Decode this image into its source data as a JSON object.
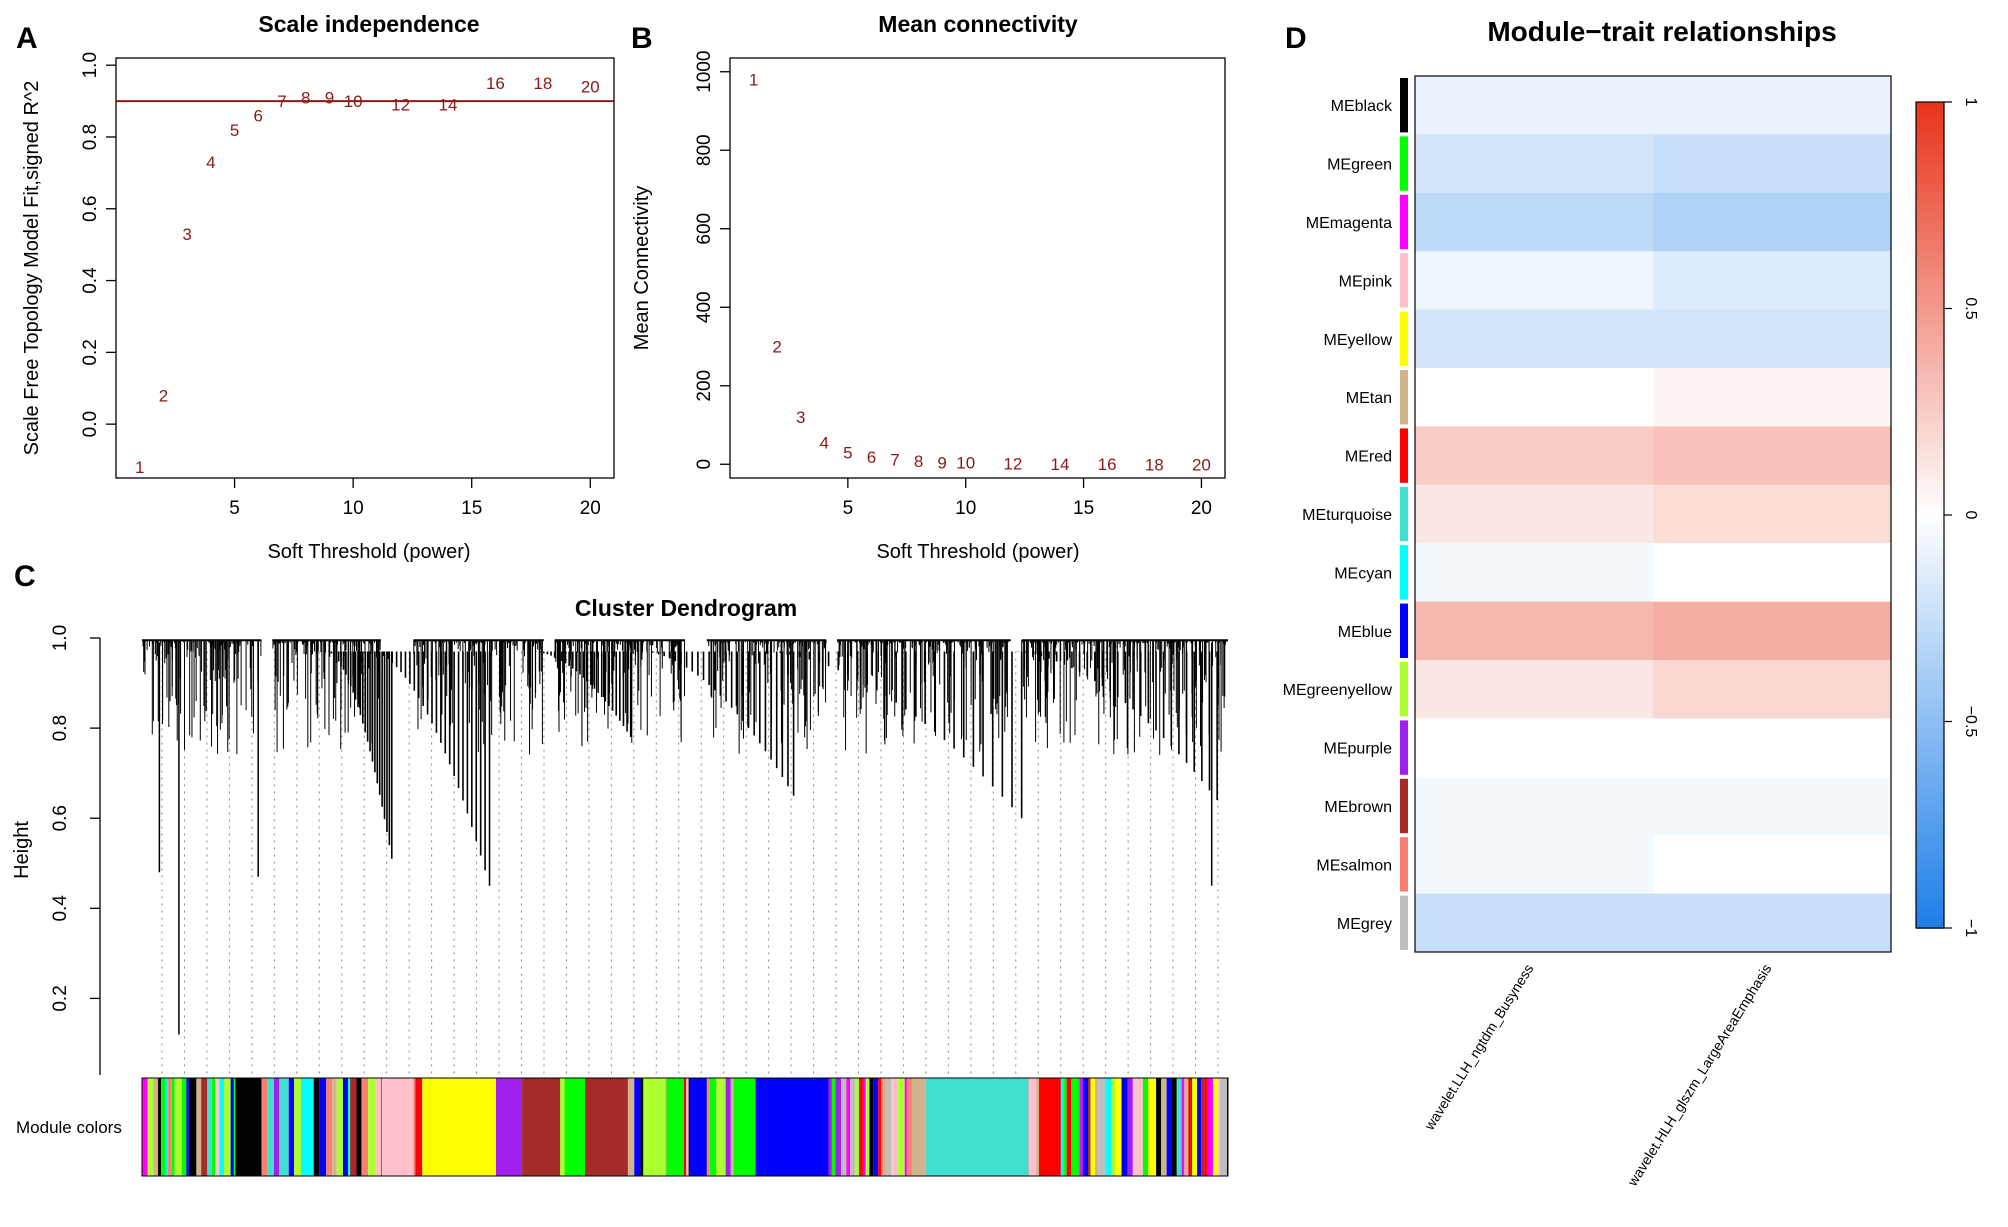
{
  "panels": {
    "a": {
      "letter": "A"
    },
    "b": {
      "letter": "B"
    },
    "c": {
      "letter": "C"
    },
    "d": {
      "letter": "D"
    }
  },
  "chart_data": [
    {
      "id": "scale-independence",
      "type": "scatter",
      "title": "Scale independence",
      "xlabel": "Soft Threshold (power)",
      "ylabel": "Scale Free Topology Model Fit,signed R^2",
      "xlim": [
        0,
        21
      ],
      "ylim": [
        -0.15,
        1.02
      ],
      "xticks": [
        5,
        10,
        15,
        20
      ],
      "yticks": [
        0.0,
        0.2,
        0.4,
        0.6,
        0.8,
        1.0
      ],
      "xtick_labels": [
        "5",
        "10",
        "15",
        "20"
      ],
      "ytick_labels": [
        "0.0",
        "0.2",
        "0.4",
        "0.6",
        "0.8",
        "1.0"
      ],
      "hline": 0.9,
      "points": [
        {
          "label": "1",
          "x": 1,
          "y": -0.12
        },
        {
          "label": "2",
          "x": 2,
          "y": 0.08
        },
        {
          "label": "3",
          "x": 3,
          "y": 0.53
        },
        {
          "label": "4",
          "x": 4,
          "y": 0.73
        },
        {
          "label": "5",
          "x": 5,
          "y": 0.82
        },
        {
          "label": "6",
          "x": 6,
          "y": 0.86
        },
        {
          "label": "7",
          "x": 7,
          "y": 0.9
        },
        {
          "label": "8",
          "x": 8,
          "y": 0.91
        },
        {
          "label": "9",
          "x": 9,
          "y": 0.91
        },
        {
          "label": "10",
          "x": 10,
          "y": 0.9
        },
        {
          "label": "12",
          "x": 12,
          "y": 0.89
        },
        {
          "label": "14",
          "x": 14,
          "y": 0.89
        },
        {
          "label": "16",
          "x": 16,
          "y": 0.95
        },
        {
          "label": "18",
          "x": 18,
          "y": 0.95
        },
        {
          "label": "20",
          "x": 20,
          "y": 0.94
        }
      ]
    },
    {
      "id": "mean-connectivity",
      "type": "scatter",
      "title": "Mean connectivity",
      "xlabel": "Soft Threshold (power)",
      "ylabel": "Mean Connectivity",
      "xlim": [
        0,
        21
      ],
      "ylim": [
        -35,
        1035
      ],
      "xticks": [
        5,
        10,
        15,
        20
      ],
      "yticks": [
        0,
        200,
        400,
        600,
        800,
        1000
      ],
      "xtick_labels": [
        "5",
        "10",
        "15",
        "20"
      ],
      "ytick_labels": [
        "0",
        "200",
        "400",
        "600",
        "800",
        "1000"
      ],
      "points": [
        {
          "label": "1",
          "x": 1,
          "y": 980
        },
        {
          "label": "2",
          "x": 2,
          "y": 300
        },
        {
          "label": "3",
          "x": 3,
          "y": 120
        },
        {
          "label": "4",
          "x": 4,
          "y": 55
        },
        {
          "label": "5",
          "x": 5,
          "y": 30
        },
        {
          "label": "6",
          "x": 6,
          "y": 18
        },
        {
          "label": "7",
          "x": 7,
          "y": 12
        },
        {
          "label": "8",
          "x": 8,
          "y": 8
        },
        {
          "label": "9",
          "x": 9,
          "y": 5
        },
        {
          "label": "10",
          "x": 10,
          "y": 4
        },
        {
          "label": "12",
          "x": 12,
          "y": 2
        },
        {
          "label": "14",
          "x": 14,
          "y": 1
        },
        {
          "label": "16",
          "x": 16,
          "y": 1
        },
        {
          "label": "18",
          "x": 18,
          "y": 0
        },
        {
          "label": "20",
          "x": 20,
          "y": 0
        }
      ]
    },
    {
      "id": "cluster-dendrogram",
      "type": "other",
      "title": "Cluster Dendrogram",
      "ylabel": "Height",
      "ylim": [
        0.03,
        1.0
      ],
      "yticks": [
        0.2,
        0.4,
        0.6,
        0.8,
        1.0
      ],
      "ytick_labels": [
        "0.2",
        "0.4",
        "0.6",
        "0.8",
        "1.0"
      ],
      "colorbar_label": "Module colors",
      "modules_left_to_right": [
        {
          "name": "black",
          "color": "#000000",
          "start": 0.086,
          "end": 0.11
        },
        {
          "name": "pink",
          "color": "#ffc0cb",
          "start": 0.221,
          "end": 0.25
        },
        {
          "name": "yellow",
          "color": "#ffff00",
          "start": 0.258,
          "end": 0.326
        },
        {
          "name": "purple",
          "color": "#a020f0",
          "start": 0.326,
          "end": 0.35
        },
        {
          "name": "brown",
          "color": "#a52a2a",
          "start": 0.35,
          "end": 0.385
        },
        {
          "name": "green",
          "color": "#00ff00",
          "start": 0.389,
          "end": 0.408
        },
        {
          "name": "brown",
          "color": "#a52a2a",
          "start": 0.408,
          "end": 0.447
        },
        {
          "name": "greenyellow",
          "color": "#adff2f",
          "start": 0.462,
          "end": 0.482
        },
        {
          "name": "green",
          "color": "#00ff00",
          "start": 0.483,
          "end": 0.499
        },
        {
          "name": "blue",
          "color": "#0000ff",
          "start": 0.504,
          "end": 0.52
        },
        {
          "name": "green",
          "color": "#00ff00",
          "start": 0.545,
          "end": 0.565
        },
        {
          "name": "blue",
          "color": "#0000ff",
          "start": 0.565,
          "end": 0.632
        },
        {
          "name": "tan",
          "color": "#d2b48c",
          "start": 0.71,
          "end": 0.722
        },
        {
          "name": "turquoise",
          "color": "#40e0d0",
          "start": 0.722,
          "end": 0.816
        },
        {
          "name": "red",
          "color": "#ff0000",
          "start": 0.826,
          "end": 0.846
        }
      ]
    },
    {
      "id": "module-trait",
      "type": "heatmap",
      "title": "Module−trait relationships",
      "columns": [
        "wavelet.LLH_ngtdm_Busyness",
        "wavelet.HLH_glszm_LargeAreaEmphasis"
      ],
      "rows": [
        {
          "label": "MEblack",
          "color": "#000000",
          "values": [
            -0.1,
            -0.1
          ]
        },
        {
          "label": "MEgreen",
          "color": "#00ff00",
          "values": [
            -0.2,
            -0.25
          ]
        },
        {
          "label": "MEmagenta",
          "color": "#ff00ff",
          "values": [
            -0.3,
            -0.35
          ]
        },
        {
          "label": "MEpink",
          "color": "#ffc0cb",
          "values": [
            -0.08,
            -0.15
          ]
        },
        {
          "label": "MEyellow",
          "color": "#ffff00",
          "values": [
            -0.2,
            -0.2
          ]
        },
        {
          "label": "MEtan",
          "color": "#d2b48c",
          "values": [
            0.0,
            0.05
          ]
        },
        {
          "label": "MEred",
          "color": "#ff0000",
          "values": [
            0.25,
            0.3
          ]
        },
        {
          "label": "MEturquoise",
          "color": "#40e0d0",
          "values": [
            0.12,
            0.17
          ]
        },
        {
          "label": "MEcyan",
          "color": "#00ffff",
          "values": [
            -0.05,
            0.0
          ]
        },
        {
          "label": "MEblue",
          "color": "#0000ff",
          "values": [
            0.35,
            0.4
          ]
        },
        {
          "label": "MEgreenyellow",
          "color": "#adff2f",
          "values": [
            0.12,
            0.2
          ]
        },
        {
          "label": "MEpurple",
          "color": "#a020f0",
          "values": [
            0.0,
            0.0
          ]
        },
        {
          "label": "MEbrown",
          "color": "#a52a2a",
          "values": [
            -0.05,
            -0.05
          ]
        },
        {
          "label": "MEsalmon",
          "color": "#fa8072",
          "values": [
            -0.05,
            0.0
          ]
        },
        {
          "label": "MEgrey",
          "color": "#bebebe",
          "values": [
            -0.25,
            -0.25
          ]
        }
      ],
      "colorbar_range": [
        -1,
        1
      ],
      "colorbar_ticks": [
        -1,
        -0.5,
        0,
        0.5,
        1
      ],
      "colorbar_tick_labels": [
        "−1",
        "−0.5",
        "0",
        "0.5",
        "1"
      ],
      "colorscale": [
        "#1e7fe8",
        "#ffffff",
        "#e8351c"
      ]
    }
  ]
}
